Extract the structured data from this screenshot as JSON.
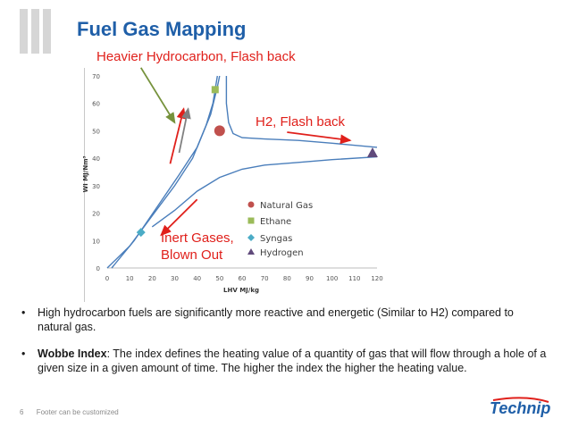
{
  "slide": {
    "title": "Fuel Gas Mapping",
    "subtitle": "Heavier Hydrocarbon, Flash back",
    "footer_page": "6",
    "footer_text": "Footer can be customized",
    "logo_text": "Technip",
    "colors": {
      "title": "#1f5fa8",
      "subtitle": "#e0201b",
      "accent_red": "#e0201b",
      "logo": "#1f5fa8"
    }
  },
  "bullets": [
    {
      "segments": [
        {
          "text": "High hydrocarbon fuels are significantly more reactive and energetic (Similar to H2) compared to natural gas.",
          "bold": false
        }
      ]
    },
    {
      "segments": [
        {
          "text": "Wobbe Index",
          "bold": true
        },
        {
          "text": ": The index defines the heating value of a quantity of gas that will flow through a hole of a given size in a given amount of time. The higher the index the higher the heating value.",
          "bold": false
        }
      ]
    }
  ],
  "chart_data": {
    "type": "scatter",
    "xlabel": "LHV  MJ/kg",
    "ylabel": "WI  MJ/Nm³",
    "xlim": [
      0,
      120
    ],
    "ylim": [
      0,
      70
    ],
    "xticks": [
      0,
      10,
      20,
      30,
      40,
      50,
      60,
      70,
      80,
      90,
      100,
      110,
      120
    ],
    "yticks": [
      0,
      10,
      20,
      30,
      40,
      50,
      60,
      70
    ],
    "grid": false,
    "series": [
      {
        "name": "Natural Gas",
        "marker": "circle",
        "color": "#c0504d",
        "points": [
          [
            50,
            50
          ]
        ]
      },
      {
        "name": "Ethane",
        "marker": "square",
        "color": "#9bbb59",
        "points": [
          [
            48,
            65
          ]
        ]
      },
      {
        "name": "Syngas",
        "marker": "diamond",
        "color": "#4bacc6",
        "points": [
          [
            15,
            13
          ]
        ]
      },
      {
        "name": "Hydrogen",
        "marker": "triangle",
        "color": "#604a7b",
        "points": [
          [
            118,
            42
          ]
        ]
      }
    ],
    "legend_position": "lower-right-inside",
    "curves": [
      {
        "color": "#4a7ebb",
        "points": [
          [
            0,
            0
          ],
          [
            10,
            8
          ],
          [
            20,
            19
          ],
          [
            30,
            30
          ],
          [
            38,
            40
          ],
          [
            44,
            52
          ],
          [
            47,
            60
          ],
          [
            49,
            70
          ]
        ]
      },
      {
        "color": "#4a7ebb",
        "points": [
          [
            2,
            0
          ],
          [
            12,
            10
          ],
          [
            22,
            22
          ],
          [
            32,
            34
          ],
          [
            40,
            44
          ],
          [
            46,
            56
          ],
          [
            49,
            66
          ],
          [
            50,
            70
          ]
        ]
      },
      {
        "color": "#4a7ebb",
        "points": [
          [
            53,
            70
          ],
          [
            53,
            60
          ],
          [
            54,
            53
          ],
          [
            56,
            49
          ],
          [
            60,
            47.5
          ],
          [
            70,
            47
          ],
          [
            85,
            46.5
          ],
          [
            100,
            45.5
          ],
          [
            120,
            44
          ]
        ]
      },
      {
        "color": "#4a7ebb",
        "points": [
          [
            20,
            15
          ],
          [
            30,
            21
          ],
          [
            40,
            28
          ],
          [
            50,
            33
          ],
          [
            60,
            36
          ],
          [
            70,
            37.5
          ],
          [
            85,
            38.5
          ],
          [
            100,
            39.5
          ],
          [
            120,
            40.5
          ]
        ]
      }
    ],
    "arrows": [
      {
        "color": "#76923c",
        "from": [
          15,
          75
        ],
        "to": [
          30,
          53
        ]
      },
      {
        "color": "#e0201b",
        "from": [
          28,
          38
        ],
        "to": [
          34,
          58
        ]
      },
      {
        "color": "#808080",
        "from": [
          32,
          42
        ],
        "to": [
          36,
          58
        ]
      },
      {
        "color": "#e0201b",
        "from": [
          80,
          49.5
        ],
        "to": [
          108,
          46.5
        ]
      },
      {
        "color": "#e0201b",
        "from": [
          40,
          25
        ],
        "to": [
          24,
          12
        ]
      }
    ],
    "annotations": [
      {
        "text": "H2,  Flash back",
        "color": "#e0201b"
      },
      {
        "text": "Inert Gases,",
        "color": "#e0201b"
      },
      {
        "text": "Blown Out",
        "color": "#e0201b"
      }
    ]
  }
}
